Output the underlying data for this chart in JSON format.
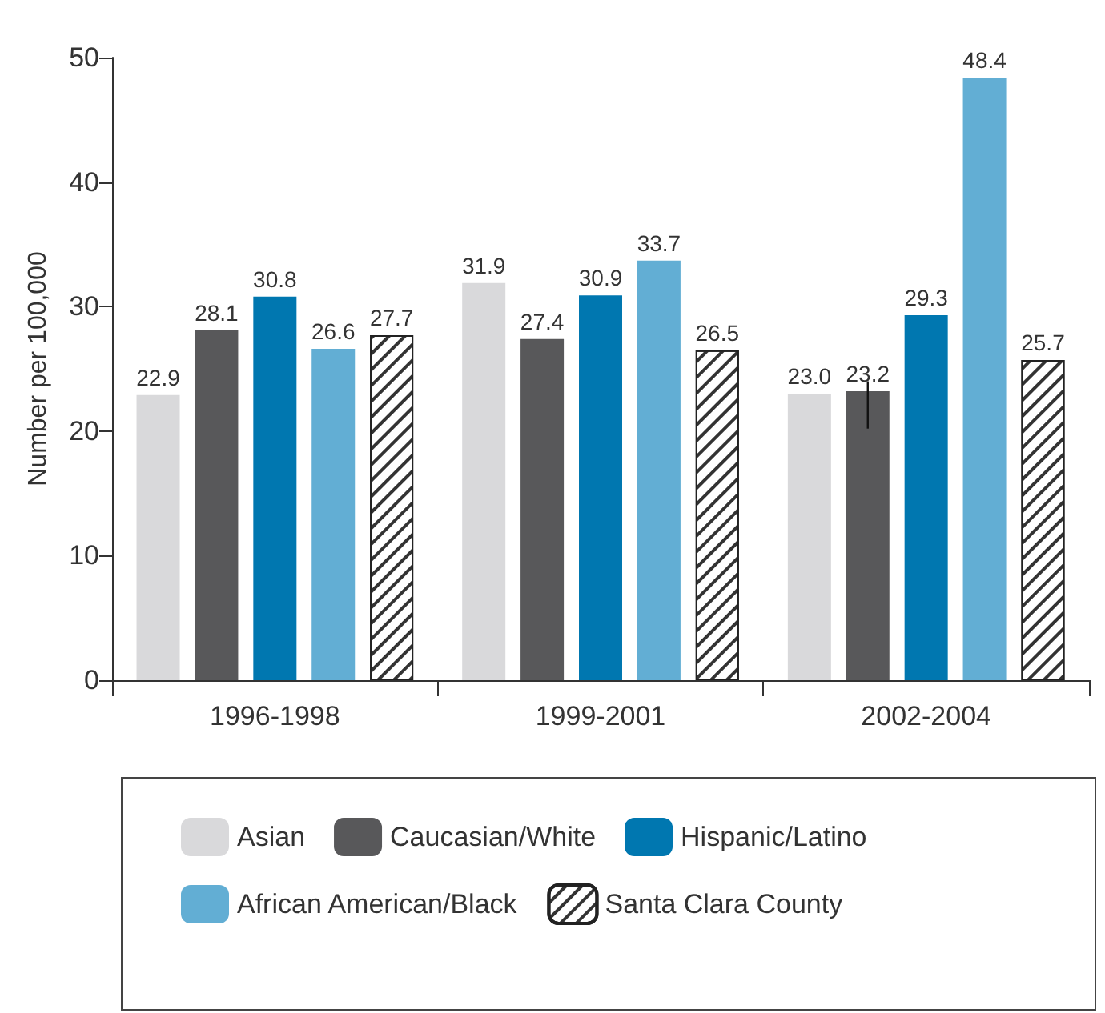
{
  "chart_data": {
    "type": "bar",
    "ylabel": "Number per 100,000",
    "categories": [
      "1996-1998",
      "1999-2001",
      "2002-2004"
    ],
    "series": [
      {
        "name": "Asian",
        "color": "#d9d9db",
        "values": [
          22.9,
          31.9,
          23.0
        ],
        "value_labels": [
          "22.9",
          "31.9",
          "23.0"
        ]
      },
      {
        "name": "Caucasian/White",
        "color": "#58585a",
        "values": [
          28.1,
          27.4,
          23.2
        ],
        "value_labels": [
          "28.1",
          "27.4",
          "23.2"
        ],
        "errors": [
          null,
          null,
          [
            20.2,
            24.0
          ]
        ]
      },
      {
        "name": "Hispanic/Latino",
        "color": "#0077b0",
        "values": [
          30.8,
          30.9,
          29.3
        ],
        "value_labels": [
          "30.8",
          "30.9",
          "29.3"
        ]
      },
      {
        "name": "African American/Black",
        "color": "#62aed4",
        "values": [
          26.6,
          33.7,
          48.4
        ],
        "value_labels": [
          "26.6",
          "33.7",
          "48.4"
        ]
      },
      {
        "name": "Santa Clara County",
        "color": "#ffffff",
        "values": [
          27.7,
          26.5,
          25.7
        ],
        "value_labels": [
          "27.7",
          "26.5",
          "25.7"
        ]
      }
    ],
    "ylim": [
      0,
      50
    ],
    "yticks": [
      0,
      10,
      20,
      30,
      40,
      50
    ],
    "grid": false,
    "legend": "bottom"
  }
}
